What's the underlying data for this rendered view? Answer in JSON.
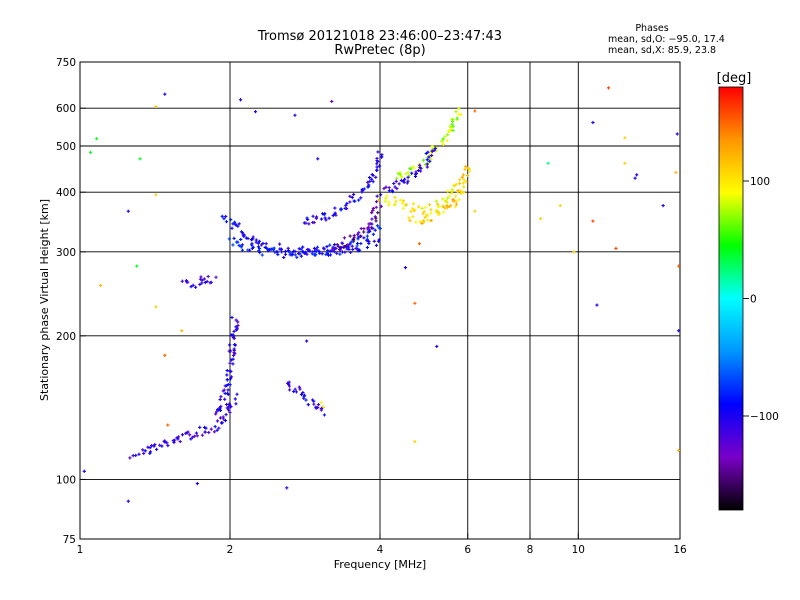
{
  "chart_data": {
    "type": "scatter",
    "title": "Tromsø 20121018 23:46:00–23:47:43",
    "subtitle": "RwPretec (8p)",
    "xlabel": "Frequency [MHz]",
    "ylabel": "Stationary phase Virtual Height [km]",
    "x_scale": "log",
    "y_scale": "log",
    "xlim": [
      1,
      16
    ],
    "ylim": [
      75,
      750
    ],
    "x_ticks": [
      {
        "value": 1,
        "label": "1"
      },
      {
        "value": 2,
        "label": "2"
      },
      {
        "value": 4,
        "label": "4"
      },
      {
        "value": 6,
        "label": "6"
      },
      {
        "value": 8,
        "label": "8"
      },
      {
        "value": 10,
        "label": "10"
      },
      {
        "value": 16,
        "label": "16"
      }
    ],
    "y_ticks": [
      {
        "value": 75,
        "label": "75"
      },
      {
        "value": 100,
        "label": "100"
      },
      {
        "value": 200,
        "label": "200"
      },
      {
        "value": 300,
        "label": "300"
      },
      {
        "value": 400,
        "label": "400"
      },
      {
        "value": 500,
        "label": "500"
      },
      {
        "value": 600,
        "label": "600"
      },
      {
        "value": 750,
        "label": "750"
      }
    ],
    "vertical_gridlines": [
      2,
      4,
      6,
      8,
      10
    ],
    "horizontal_gridlines": [
      100,
      200,
      300,
      400,
      500,
      600
    ],
    "grid": true,
    "phases_info": {
      "title": "Phases",
      "line_o": "mean, sd,O: −95.0, 17.4",
      "line_x": "mean, sd,X:  85.9, 23.8"
    },
    "colorbar": {
      "label": "[deg]",
      "range": [
        -180,
        180
      ],
      "ticks": [
        {
          "value": 100,
          "label": "100"
        },
        {
          "value": 0,
          "label": "0"
        },
        {
          "value": -100,
          "label": "−100"
        }
      ],
      "colors": [
        "#000000",
        "#7a00c8",
        "#0000ff",
        "#0096ff",
        "#00ffff",
        "#00ff00",
        "#ffff00",
        "#ff9600",
        "#ff0000"
      ]
    },
    "traces": [
      {
        "x": [
          1.28,
          1.4,
          1.55,
          1.7,
          1.85,
          1.95,
          2.05
        ],
        "y": [
          113,
          116,
          121,
          125,
          128,
          135,
          150
        ],
        "phase": -110,
        "name": ""
      },
      {
        "x": [
          1.9,
          1.95,
          2.0,
          2.02,
          2.05
        ],
        "y": [
          135,
          150,
          170,
          190,
          220
        ],
        "phase": -105,
        "name": ""
      },
      {
        "x": [
          1.62,
          1.7,
          1.8,
          1.88
        ],
        "y": [
          255,
          258,
          262,
          265
        ],
        "phase": -105,
        "name": ""
      },
      {
        "x": [
          1.95,
          2.1,
          2.3,
          2.6,
          3.0,
          3.5,
          4.0
        ],
        "y": [
          360,
          330,
          310,
          302,
          300,
          303,
          315
        ],
        "phase": -95,
        "name": ""
      },
      {
        "x": [
          2.0,
          2.2,
          2.5,
          2.9,
          3.3,
          3.7,
          4.0
        ],
        "y": [
          320,
          305,
          298,
          298,
          305,
          320,
          345
        ],
        "phase": -85,
        "name": ""
      },
      {
        "x": [
          2.8,
          3.2,
          3.6,
          3.9,
          4.0
        ],
        "y": [
          345,
          360,
          390,
          430,
          490
        ],
        "phase": -100,
        "name": ""
      },
      {
        "x": [
          3.2,
          3.5,
          3.8,
          4.0
        ],
        "y": [
          305,
          318,
          340,
          380
        ],
        "phase": -140,
        "name": ""
      },
      {
        "x": [
          4.0,
          4.3,
          4.6,
          5.0,
          5.4,
          5.8
        ],
        "y": [
          390,
          380,
          372,
          368,
          380,
          420
        ],
        "phase": 95,
        "name": ""
      },
      {
        "x": [
          4.6,
          5.0,
          5.4,
          5.8,
          6.0
        ],
        "y": [
          350,
          352,
          365,
          395,
          460
        ],
        "phase": 110,
        "name": ""
      },
      {
        "x": [
          4.3,
          4.6,
          5.0,
          5.4,
          5.8
        ],
        "y": [
          430,
          445,
          470,
          520,
          600
        ],
        "phase": 75,
        "name": ""
      },
      {
        "x": [
          4.0,
          4.3,
          4.6,
          4.9,
          5.2
        ],
        "y": [
          400,
          410,
          430,
          460,
          500
        ],
        "phase": -105,
        "name": ""
      },
      {
        "x": [
          2.6,
          2.8,
          3.0,
          3.1
        ],
        "y": [
          160,
          150,
          140,
          138
        ],
        "phase": -100,
        "name": ""
      }
    ],
    "scatter": [
      {
        "x": 1.02,
        "y": 104,
        "phase": -100
      },
      {
        "x": 1.05,
        "y": 485,
        "phase": 40
      },
      {
        "x": 1.08,
        "y": 518,
        "phase": 40
      },
      {
        "x": 1.1,
        "y": 255,
        "phase": 120
      },
      {
        "x": 1.25,
        "y": 365,
        "phase": -100
      },
      {
        "x": 1.3,
        "y": 280,
        "phase": 40
      },
      {
        "x": 1.32,
        "y": 470,
        "phase": 40
      },
      {
        "x": 1.42,
        "y": 395,
        "phase": 110
      },
      {
        "x": 1.42,
        "y": 230,
        "phase": 110
      },
      {
        "x": 1.48,
        "y": 182,
        "phase": 150
      },
      {
        "x": 1.5,
        "y": 130,
        "phase": 150
      },
      {
        "x": 1.42,
        "y": 605,
        "phase": 110
      },
      {
        "x": 1.48,
        "y": 642,
        "phase": -100
      },
      {
        "x": 1.6,
        "y": 205,
        "phase": 120
      },
      {
        "x": 1.25,
        "y": 90,
        "phase": -100
      },
      {
        "x": 1.72,
        "y": 98,
        "phase": -100
      },
      {
        "x": 2.6,
        "y": 96,
        "phase": -100
      },
      {
        "x": 2.25,
        "y": 590,
        "phase": -100
      },
      {
        "x": 2.1,
        "y": 625,
        "phase": -100
      },
      {
        "x": 2.7,
        "y": 580,
        "phase": -100
      },
      {
        "x": 3.2,
        "y": 620,
        "phase": -130
      },
      {
        "x": 3.0,
        "y": 470,
        "phase": -100
      },
      {
        "x": 2.85,
        "y": 195,
        "phase": -100
      },
      {
        "x": 3.05,
        "y": 145,
        "phase": 95
      },
      {
        "x": 3.08,
        "y": 142,
        "phase": 95
      },
      {
        "x": 4.5,
        "y": 278,
        "phase": -100
      },
      {
        "x": 4.7,
        "y": 234,
        "phase": 150
      },
      {
        "x": 4.8,
        "y": 312,
        "phase": 150
      },
      {
        "x": 5.2,
        "y": 190,
        "phase": -100
      },
      {
        "x": 4.7,
        "y": 120,
        "phase": 110
      },
      {
        "x": 6.2,
        "y": 592,
        "phase": 150
      },
      {
        "x": 6.2,
        "y": 365,
        "phase": 110
      },
      {
        "x": 8.4,
        "y": 352,
        "phase": 110
      },
      {
        "x": 8.7,
        "y": 460,
        "phase": 20
      },
      {
        "x": 9.2,
        "y": 375,
        "phase": 110
      },
      {
        "x": 9.8,
        "y": 300,
        "phase": 110
      },
      {
        "x": 10.7,
        "y": 560,
        "phase": -100
      },
      {
        "x": 10.7,
        "y": 348,
        "phase": 160
      },
      {
        "x": 10.9,
        "y": 232,
        "phase": -100
      },
      {
        "x": 11.5,
        "y": 662,
        "phase": 160
      },
      {
        "x": 11.9,
        "y": 305,
        "phase": 160
      },
      {
        "x": 12.4,
        "y": 460,
        "phase": 110
      },
      {
        "x": 12.4,
        "y": 520,
        "phase": 110
      },
      {
        "x": 13.0,
        "y": 428,
        "phase": -100
      },
      {
        "x": 13.1,
        "y": 435,
        "phase": -100
      },
      {
        "x": 14.8,
        "y": 375,
        "phase": -100
      },
      {
        "x": 15.7,
        "y": 440,
        "phase": 120
      },
      {
        "x": 15.8,
        "y": 530,
        "phase": -100
      },
      {
        "x": 15.9,
        "y": 205,
        "phase": -100
      },
      {
        "x": 15.9,
        "y": 115,
        "phase": 120
      },
      {
        "x": 15.9,
        "y": 280,
        "phase": 150
      }
    ]
  }
}
